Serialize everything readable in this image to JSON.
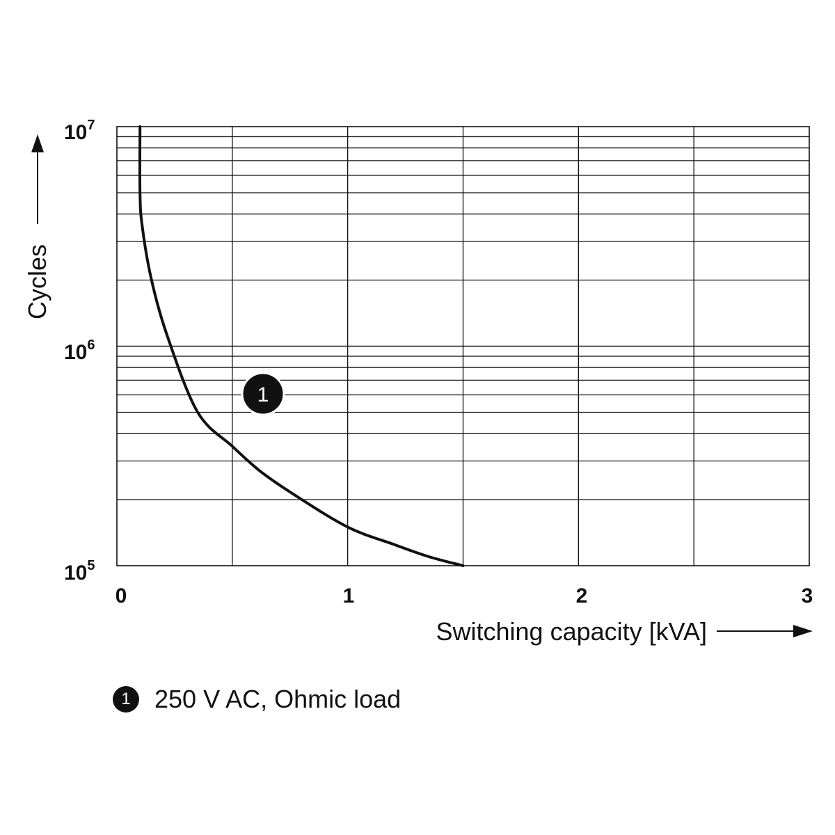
{
  "chart_data": {
    "type": "line",
    "xlabel": "Switching capacity [kVA]",
    "ylabel": "Cycles",
    "xlim": [
      0,
      3
    ],
    "ylim": [
      100000,
      10000000
    ],
    "yscale": "log",
    "grid": true,
    "x_ticks": [
      "0",
      "1",
      "2",
      "3"
    ],
    "y_ticks": [
      {
        "base": "10",
        "exp": "5"
      },
      {
        "base": "10",
        "exp": "6"
      },
      {
        "base": "10",
        "exp": "7"
      }
    ],
    "series": [
      {
        "marker": "1",
        "x": [
          0.1,
          0.1,
          0.11,
          0.15,
          0.22,
          0.35,
          0.5,
          0.62,
          0.77,
          1.0,
          1.2,
          1.35,
          1.5
        ],
        "y": [
          10000000,
          5000000,
          3500000,
          2000000,
          1100000,
          500000,
          350000,
          270000,
          210000,
          150000,
          125000,
          110000,
          100000
        ]
      }
    ],
    "legend": [
      {
        "marker": "1",
        "label": "250 V AC, Ohmic load"
      }
    ],
    "legend_position": "bottom-left"
  }
}
